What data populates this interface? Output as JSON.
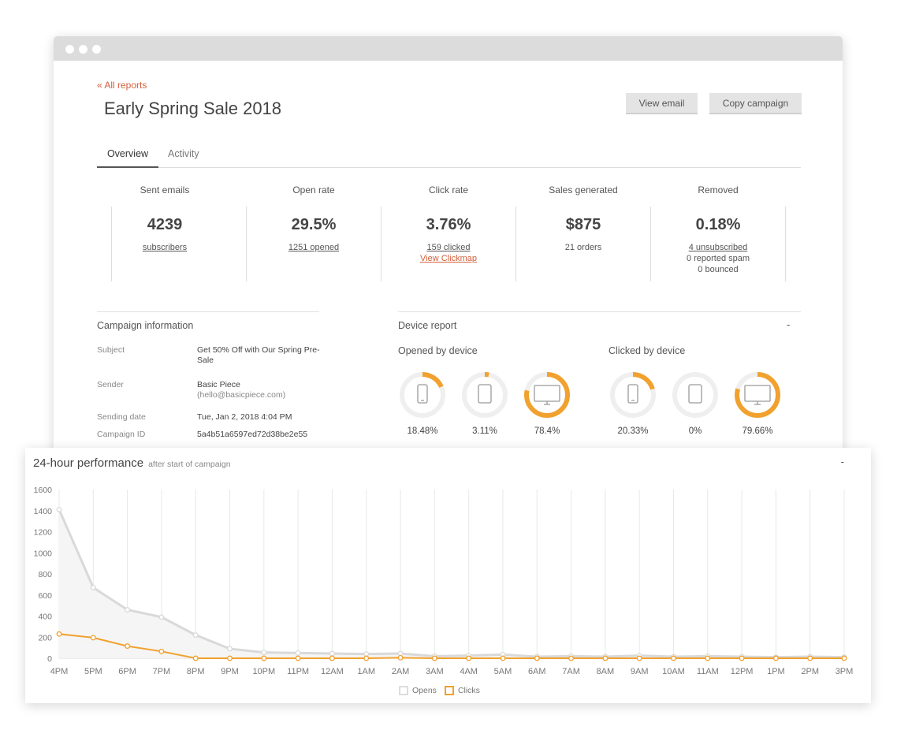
{
  "header": {
    "back_link": "« All reports",
    "title": "Early Spring Sale 2018",
    "view_email": "View email",
    "copy_campaign": "Copy campaign"
  },
  "tabs": [
    {
      "label": "Overview",
      "active": true
    },
    {
      "label": "Activity",
      "active": false
    }
  ],
  "stats": [
    {
      "label": "Sent emails",
      "value": "4239",
      "sub": "subscribers"
    },
    {
      "label": "Open rate",
      "value": "29.5%",
      "sub": "1251 opened"
    },
    {
      "label": "Click rate",
      "value": "3.76%",
      "sub": "159 clicked",
      "link": "View Clickmap"
    },
    {
      "label": "Sales generated",
      "value": "$875",
      "sub": "21 orders"
    },
    {
      "label": "Removed",
      "value": "0.18%",
      "sub": "4 unsubscribed",
      "sub2": "0 reported spam",
      "sub3": "0 bounced"
    }
  ],
  "campaign_info": {
    "title": "Campaign information",
    "rows": [
      {
        "key": "Subject",
        "value": "Get 50% Off with Our Spring Pre-Sale"
      },
      {
        "key": "Sender",
        "value": "Basic Piece",
        "value2": "(hello@basicpiece.com)"
      },
      {
        "key": "Sending date",
        "value": "Tue, Jan 2, 2018 4:04 PM"
      },
      {
        "key": "Campaign ID",
        "value": "5a4b51a6597ed72d38be2e55"
      }
    ]
  },
  "device_report": {
    "title": "Device report",
    "collapse": "-",
    "opened": {
      "title": "Opened by device",
      "items": [
        {
          "device": "mobile",
          "icon": "phone-icon",
          "percent": 18.48,
          "label": "18.48%"
        },
        {
          "device": "tablet",
          "icon": "tablet-icon",
          "percent": 3.11,
          "label": "3.11%"
        },
        {
          "device": "desktop",
          "icon": "monitor-icon",
          "percent": 78.4,
          "label": "78.4%"
        }
      ]
    },
    "clicked": {
      "title": "Clicked by device",
      "items": [
        {
          "device": "mobile",
          "icon": "phone-icon",
          "percent": 20.33,
          "label": "20.33%"
        },
        {
          "device": "tablet",
          "icon": "tablet-icon",
          "percent": 0,
          "label": "0%"
        },
        {
          "device": "desktop",
          "icon": "monitor-icon",
          "percent": 79.66,
          "label": "79.66%"
        }
      ]
    }
  },
  "colors": {
    "accent": "#f1a12e",
    "link": "#d2603b",
    "opens_line": "#d9d9d9",
    "ring_bg": "#efefef"
  },
  "performance": {
    "title": "24-hour performance",
    "subtitle": "after start of campaign",
    "collapse": "-"
  },
  "chart_data": {
    "type": "line",
    "title": "24-hour performance",
    "categories": [
      "4PM",
      "5PM",
      "6PM",
      "7PM",
      "8PM",
      "9PM",
      "10PM",
      "11PM",
      "12AM",
      "1AM",
      "2AM",
      "3AM",
      "4AM",
      "5AM",
      "6AM",
      "7AM",
      "8AM",
      "9AM",
      "10AM",
      "11AM",
      "12PM",
      "1PM",
      "2PM",
      "3PM"
    ],
    "ylim": [
      0,
      1600
    ],
    "yticks": [
      0,
      200,
      400,
      600,
      800,
      1000,
      1200,
      1400,
      1600
    ],
    "grid": "vertical",
    "legend_position": "bottom",
    "series": [
      {
        "name": "Opens",
        "color": "#d9d9d9",
        "values": [
          1410,
          670,
          460,
          390,
          220,
          90,
          55,
          50,
          45,
          40,
          45,
          20,
          25,
          35,
          15,
          20,
          15,
          25,
          15,
          20,
          15,
          10,
          15,
          10
        ]
      },
      {
        "name": "Clicks",
        "color": "#f1a12e",
        "values": [
          230,
          195,
          115,
          65,
          0,
          0,
          0,
          0,
          0,
          0,
          5,
          0,
          0,
          0,
          0,
          0,
          0,
          0,
          0,
          0,
          0,
          0,
          0,
          0
        ]
      }
    ]
  }
}
